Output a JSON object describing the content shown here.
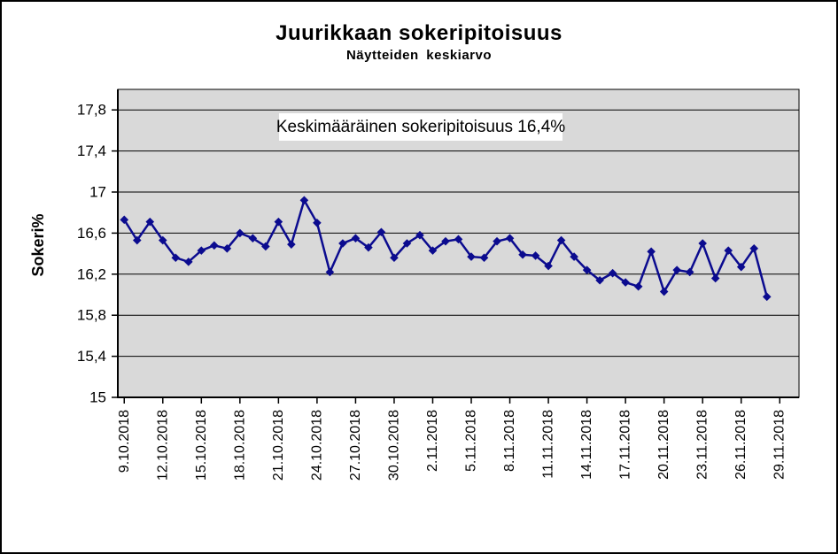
{
  "figure": {
    "title": "Juurikkaan sokeripitoisuus",
    "subtitle": "Näytteiden keskiarvo",
    "annotation": "Keskimääräinen sokeripitoisuus 16,4%",
    "y_axis_title": "Sokeri%"
  },
  "colors": {
    "series": "#0b0b8f",
    "plot_bg": "#d9d9d9",
    "gridline": "#000000",
    "axis": "#000000",
    "annotation_bg": "#ffffff"
  },
  "chart_data": {
    "type": "line",
    "title": "Juurikkaan sokeripitoisuus",
    "subtitle": "Näytteiden keskiarvo",
    "ylabel": "Sokeri%",
    "xlabel": "",
    "ylim": [
      15,
      18
    ],
    "grid": true,
    "legend": "none",
    "marker": "diamond",
    "annotation": "Keskimääräinen sokeripitoisuus 16,4%",
    "yticks": [
      15,
      15.4,
      15.8,
      16.2,
      16.6,
      17,
      17.4,
      17.8
    ],
    "ytick_labels": [
      "15",
      "15,4",
      "15,8",
      "16,2",
      "16,6",
      "17",
      "17,4",
      "17,8"
    ],
    "x_axis_slots": 53,
    "xtick_slot_step": 3,
    "xtick_labels": [
      "9.10.2018",
      "12.10.2018",
      "15.10.2018",
      "18.10.2018",
      "21.10.2018",
      "24.10.2018",
      "27.10.2018",
      "30.10.2018",
      "2.11.2018",
      "5.11.2018",
      "8.11.2018",
      "11.11.2018",
      "14.11.2018",
      "17.11.2018",
      "20.11.2018",
      "23.11.2018",
      "26.11.2018",
      "29.11.2018"
    ],
    "x": [
      "9.10.2018",
      "10.10.2018",
      "11.10.2018",
      "12.10.2018",
      "13.10.2018",
      "14.10.2018",
      "15.10.2018",
      "16.10.2018",
      "17.10.2018",
      "18.10.2018",
      "19.10.2018",
      "20.10.2018",
      "21.10.2018",
      "22.10.2018",
      "23.10.2018",
      "24.10.2018",
      "25.10.2018",
      "26.10.2018",
      "27.10.2018",
      "28.10.2018",
      "29.10.2018",
      "30.10.2018",
      "31.10.2018",
      "1.11.2018",
      "2.11.2018",
      "3.11.2018",
      "4.11.2018",
      "5.11.2018",
      "6.11.2018",
      "7.11.2018",
      "8.11.2018",
      "9.11.2018",
      "10.11.2018",
      "11.11.2018",
      "12.11.2018",
      "13.11.2018",
      "14.11.2018",
      "15.11.2018",
      "16.11.2018",
      "17.11.2018",
      "18.11.2018",
      "19.11.2018",
      "20.11.2018",
      "21.11.2018",
      "22.11.2018",
      "23.11.2018",
      "24.11.2018",
      "25.11.2018",
      "26.11.2018",
      "27.11.2018",
      "28.11.2018"
    ],
    "values": [
      16.73,
      16.53,
      16.71,
      16.53,
      16.36,
      16.32,
      16.43,
      16.48,
      16.45,
      16.6,
      16.55,
      16.47,
      16.71,
      16.49,
      16.92,
      16.7,
      16.22,
      16.5,
      16.55,
      16.46,
      16.61,
      16.36,
      16.5,
      16.58,
      16.43,
      16.52,
      16.54,
      16.37,
      16.36,
      16.52,
      16.55,
      16.39,
      16.38,
      16.28,
      16.53,
      16.37,
      16.24,
      16.14,
      16.21,
      16.12,
      16.08,
      16.42,
      16.03,
      16.24,
      16.22,
      16.5,
      16.16,
      16.43,
      16.27,
      16.45,
      15.98
    ]
  }
}
